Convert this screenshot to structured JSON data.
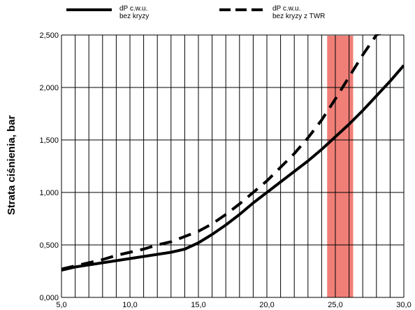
{
  "chart_data": {
    "type": "line",
    "title": "",
    "xlabel": "",
    "ylabel": "Strata ciśnienia, bar",
    "xlim": [
      5,
      30
    ],
    "ylim": [
      0,
      2.5
    ],
    "x_ticks": [
      "5,0",
      "10,0",
      "15,0",
      "20,0",
      "25,0",
      "30,0"
    ],
    "y_ticks": [
      "0,000",
      "0,500",
      "1,000",
      "1,500",
      "2,000",
      "2,500"
    ],
    "grid": "vertical every 1 unit, horizontal every 0.5 unit",
    "legend_position": "top",
    "highlight_band": {
      "x": [
        24.4,
        26.3
      ],
      "color": "#f07f78"
    },
    "series": [
      {
        "name": "dP c.w.u.\nbez kryzy",
        "style": "solid",
        "color": "#000000",
        "x": [
          5,
          6,
          7,
          8,
          9,
          10,
          11,
          12,
          13,
          14,
          15,
          16,
          17,
          18,
          19,
          20,
          21,
          22,
          23,
          24,
          25,
          26,
          27,
          28,
          29,
          30
        ],
        "y": [
          0.26,
          0.29,
          0.31,
          0.33,
          0.35,
          0.37,
          0.39,
          0.41,
          0.43,
          0.46,
          0.52,
          0.6,
          0.69,
          0.79,
          0.9,
          1.0,
          1.1,
          1.2,
          1.3,
          1.41,
          1.53,
          1.65,
          1.78,
          1.92,
          2.06,
          2.21
        ]
      },
      {
        "name": "dP c.w.u.\nbez kryzy z TWR",
        "style": "dashed",
        "color": "#000000",
        "x": [
          5,
          6,
          7,
          8,
          9,
          10,
          11,
          12,
          13,
          14,
          15,
          16,
          17,
          18,
          19,
          20,
          21,
          22,
          23,
          24,
          25,
          26,
          27,
          28,
          28.8
        ],
        "y": [
          0.27,
          0.3,
          0.33,
          0.36,
          0.4,
          0.43,
          0.46,
          0.5,
          0.53,
          0.58,
          0.63,
          0.7,
          0.79,
          0.89,
          1.0,
          1.11,
          1.24,
          1.37,
          1.52,
          1.69,
          1.89,
          2.1,
          2.31,
          2.5,
          2.55
        ]
      }
    ]
  }
}
